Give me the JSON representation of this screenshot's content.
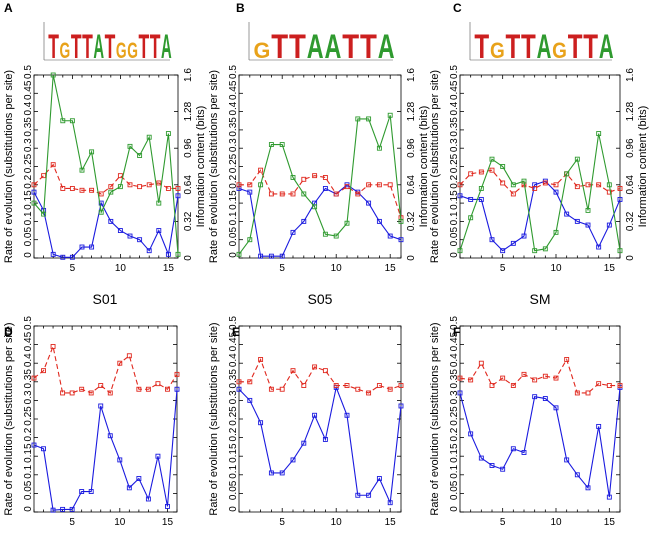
{
  "figure": {
    "colors": {
      "blue": "#1a1adf",
      "red": "#e0281e",
      "green": "#2f9a2f",
      "axis": "#000000",
      "logo_t": "#cc1f1f",
      "logo_g": "#e8a21a",
      "logo_a": "#2f9a2f",
      "logo_c": "#1f3fcc"
    }
  },
  "chart_data": [
    {
      "panel": "A",
      "type": "line",
      "logo": "GTTA.GGTTA",
      "logo_text": "TGTTATGGTTA",
      "ylabel_left": "Rate of evolution (substitutions per site)",
      "ylabel_right": "Information content (bits)",
      "xlim": [
        1,
        16
      ],
      "ylim": [
        0,
        0.5
      ],
      "ylim_right": [
        0,
        1.6
      ],
      "xticks": [
        5,
        10,
        15
      ],
      "yticks": [
        0,
        0.05,
        0.1,
        0.15,
        0.2,
        0.25,
        0.3,
        0.35,
        0.4,
        0.45,
        0.5
      ],
      "ytick_labels": [
        "0",
        "0.05",
        "0.1",
        "0.15",
        "0.2",
        "0.25",
        "0.3",
        "0.35",
        "0.4",
        "0.45",
        "0.5"
      ],
      "yticks_right": [
        0,
        0.32,
        0.64,
        0.96,
        1.28,
        1.6
      ],
      "ytick_right_labels": [
        "0",
        "0.32",
        "0.64",
        "0.96",
        "1.28",
        "1.6"
      ],
      "series": [
        {
          "name": "blue",
          "color": "blue",
          "dash": false,
          "values": [
            0.18,
            0.13,
            0.01,
            0.002,
            0.002,
            0.03,
            0.03,
            0.15,
            0.1,
            0.075,
            0.06,
            0.05,
            0.02,
            0.075,
            0.01,
            0.17
          ]
        },
        {
          "name": "red",
          "color": "red",
          "dash": true,
          "values": [
            0.2,
            0.225,
            0.255,
            0.19,
            0.19,
            0.185,
            0.185,
            0.175,
            0.195,
            0.225,
            0.2,
            0.195,
            0.2,
            0.205,
            0.19,
            0.19
          ]
        },
        {
          "name": "green",
          "color": "green",
          "dash": false,
          "values": [
            0.15,
            0.12,
            0.5,
            0.375,
            0.375,
            0.24,
            0.29,
            0.125,
            0.18,
            0.195,
            0.305,
            0.28,
            0.33,
            0.15,
            0.34,
            0.01
          ]
        }
      ]
    },
    {
      "panel": "B",
      "type": "line",
      "logo": "GTTA..ATTA",
      "logo_text": "GTTAATTA",
      "ylabel_left": "Rate of evolution (substitutions per site)",
      "ylabel_right": "Information content (bits)",
      "xlim": [
        1,
        16
      ],
      "ylim": [
        0,
        0.5
      ],
      "ylim_right": [
        0,
        1.6
      ],
      "xticks": [
        5,
        10,
        15
      ],
      "yticks": [
        0,
        0.05,
        0.1,
        0.15,
        0.2,
        0.25,
        0.3,
        0.35,
        0.4,
        0.45,
        0.5
      ],
      "ytick_labels": [
        "0",
        "0.05",
        "0.1",
        "0.15",
        "0.2",
        "0.25",
        "0.3",
        "0.35",
        "0.4",
        "0.45",
        "0.5"
      ],
      "yticks_right": [
        0,
        0.32,
        0.64,
        0.96,
        1.28,
        1.6
      ],
      "ytick_right_labels": [
        "0",
        "0.32",
        "0.64",
        "0.96",
        "1.28",
        "1.6"
      ],
      "series": [
        {
          "name": "blue",
          "color": "blue",
          "dash": false,
          "values": [
            0.19,
            0.18,
            0.005,
            0.005,
            0.005,
            0.07,
            0.1,
            0.15,
            0.19,
            0.175,
            0.2,
            0.18,
            0.15,
            0.1,
            0.06,
            0.05
          ]
        },
        {
          "name": "red",
          "color": "red",
          "dash": true,
          "values": [
            0.2,
            0.2,
            0.24,
            0.175,
            0.175,
            0.175,
            0.215,
            0.225,
            0.22,
            0.175,
            0.195,
            0.175,
            0.2,
            0.2,
            0.2,
            0.11
          ]
        },
        {
          "name": "green",
          "color": "green",
          "dash": false,
          "values": [
            0.01,
            0.05,
            0.2,
            0.31,
            0.31,
            0.22,
            0.175,
            0.14,
            0.065,
            0.06,
            0.095,
            0.38,
            0.38,
            0.3,
            0.39,
            0.1
          ]
        }
      ]
    },
    {
      "panel": "C",
      "type": "line",
      "logo": "GTTA..GTTA",
      "logo_text": "TGTTAGTTA",
      "ylabel_left": "Rate of evolution (substitutions per site)",
      "ylabel_right": "Information content (bits)",
      "xlim": [
        1,
        16
      ],
      "ylim": [
        0,
        0.5
      ],
      "ylim_right": [
        0,
        1.6
      ],
      "xticks": [
        5,
        10,
        15
      ],
      "yticks": [
        0,
        0.05,
        0.1,
        0.15,
        0.2,
        0.25,
        0.3,
        0.35,
        0.4,
        0.45,
        0.5
      ],
      "ytick_labels": [
        "0",
        "0.05",
        "0.1",
        "0.15",
        "0.2",
        "0.25",
        "0.3",
        "0.35",
        "0.4",
        "0.45",
        "0.5"
      ],
      "yticks_right": [
        0,
        0.32,
        0.64,
        0.96,
        1.28,
        1.6
      ],
      "ytick_right_labels": [
        "0",
        "0.32",
        "0.64",
        "0.96",
        "1.28",
        "1.6"
      ],
      "series": [
        {
          "name": "blue",
          "color": "blue",
          "dash": false,
          "values": [
            0.17,
            0.16,
            0.16,
            0.05,
            0.02,
            0.04,
            0.06,
            0.2,
            0.21,
            0.18,
            0.12,
            0.1,
            0.09,
            0.03,
            0.09,
            0.16
          ]
        },
        {
          "name": "red",
          "color": "red",
          "dash": true,
          "values": [
            0.2,
            0.23,
            0.235,
            0.24,
            0.205,
            0.175,
            0.2,
            0.19,
            0.205,
            0.2,
            0.23,
            0.195,
            0.2,
            0.2,
            0.18,
            0.19
          ]
        },
        {
          "name": "green",
          "color": "green",
          "dash": false,
          "values": [
            0.02,
            0.11,
            0.19,
            0.27,
            0.25,
            0.2,
            0.21,
            0.02,
            0.025,
            0.07,
            0.23,
            0.27,
            0.13,
            0.34,
            0.2,
            0.02
          ]
        }
      ]
    },
    {
      "panel": "D",
      "type": "line",
      "title": "S01",
      "ylabel_left": "Rate of evolution (substitutions per site)",
      "xlim": [
        1,
        16
      ],
      "ylim": [
        0,
        0.5
      ],
      "xticks": [
        5,
        10,
        15
      ],
      "yticks": [
        0,
        0.05,
        0.1,
        0.15,
        0.2,
        0.25,
        0.3,
        0.35,
        0.4,
        0.45,
        0.5
      ],
      "ytick_labels": [
        "0",
        "0.05",
        "0.1",
        "0.15",
        "0.2",
        "0.25",
        "0.3",
        "0.35",
        "0.4",
        "0.45",
        "0.5"
      ],
      "series": [
        {
          "name": "blue",
          "color": "blue",
          "dash": false,
          "values": [
            0.18,
            0.17,
            0.005,
            0.007,
            0.007,
            0.055,
            0.055,
            0.285,
            0.205,
            0.14,
            0.065,
            0.09,
            0.035,
            0.15,
            0.015,
            0.33
          ]
        },
        {
          "name": "red",
          "color": "red",
          "dash": true,
          "values": [
            0.36,
            0.38,
            0.445,
            0.32,
            0.32,
            0.33,
            0.32,
            0.34,
            0.32,
            0.4,
            0.42,
            0.33,
            0.33,
            0.345,
            0.33,
            0.37
          ]
        }
      ]
    },
    {
      "panel": "E",
      "type": "line",
      "title": "S05",
      "ylabel_left": "Rate of evolution (substitutions per site)",
      "xlim": [
        1,
        16
      ],
      "ylim": [
        0,
        0.5
      ],
      "xticks": [
        5,
        10,
        15
      ],
      "yticks": [
        0,
        0.05,
        0.1,
        0.15,
        0.2,
        0.25,
        0.3,
        0.35,
        0.4,
        0.45,
        0.5
      ],
      "ytick_labels": [
        "0",
        "0.05",
        "0.1",
        "0.15",
        "0.2",
        "0.25",
        "0.3",
        "0.35",
        "0.4",
        "0.45",
        "0.5"
      ],
      "series": [
        {
          "name": "blue",
          "color": "blue",
          "dash": false,
          "values": [
            0.33,
            0.3,
            0.24,
            0.105,
            0.105,
            0.14,
            0.185,
            0.26,
            0.195,
            0.335,
            0.26,
            0.045,
            0.045,
            0.09,
            0.025,
            0.285
          ]
        },
        {
          "name": "red",
          "color": "red",
          "dash": true,
          "values": [
            0.35,
            0.35,
            0.41,
            0.33,
            0.33,
            0.38,
            0.34,
            0.39,
            0.38,
            0.34,
            0.34,
            0.33,
            0.32,
            0.34,
            0.33,
            0.34
          ]
        }
      ]
    },
    {
      "panel": "F",
      "type": "line",
      "title": "SM",
      "ylabel_left": "Rate of evolution (substitutions per site)",
      "xlim": [
        1,
        16
      ],
      "ylim": [
        0,
        0.5
      ],
      "xticks": [
        5,
        10,
        15
      ],
      "yticks": [
        0,
        0.05,
        0.1,
        0.15,
        0.2,
        0.25,
        0.3,
        0.35,
        0.4,
        0.45,
        0.5
      ],
      "ytick_labels": [
        "0",
        "0.05",
        "0.1",
        "0.15",
        "0.2",
        "0.25",
        "0.3",
        "0.35",
        "0.4",
        "0.45",
        "0.5"
      ],
      "series": [
        {
          "name": "blue",
          "color": "blue",
          "dash": false,
          "values": [
            0.32,
            0.21,
            0.145,
            0.125,
            0.115,
            0.17,
            0.16,
            0.31,
            0.305,
            0.28,
            0.14,
            0.1,
            0.065,
            0.23,
            0.04,
            0.335
          ]
        },
        {
          "name": "red",
          "color": "red",
          "dash": true,
          "values": [
            0.36,
            0.355,
            0.4,
            0.34,
            0.36,
            0.34,
            0.37,
            0.355,
            0.365,
            0.36,
            0.41,
            0.32,
            0.32,
            0.345,
            0.34,
            0.34
          ]
        }
      ]
    }
  ]
}
